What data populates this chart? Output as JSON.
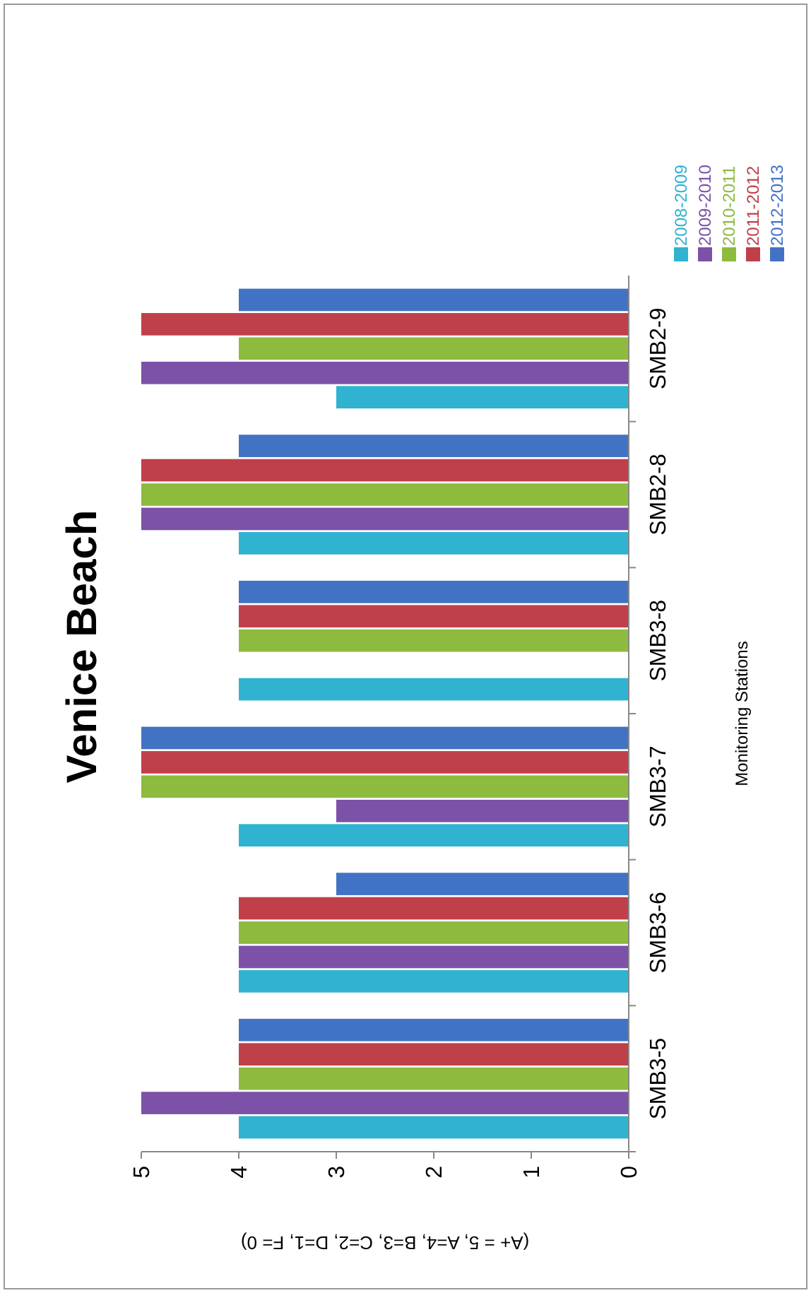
{
  "chart_data": {
    "type": "bar",
    "orientation": "horizontal",
    "title": "Venice Beach",
    "ylabel": "Monitoring Stations",
    "xlabel": "(A+ = 5, A=4, B=3, C=2, D=1, F= 0)",
    "categories": [
      "SMB2-9",
      "SMB2-8",
      "SMB3-8",
      "SMB3-7",
      "SMB3-6",
      "SMB3-5"
    ],
    "series": [
      {
        "name": "2008-2009",
        "color": "#2fb3d0",
        "values": [
          3,
          4,
          4,
          4,
          4,
          4
        ]
      },
      {
        "name": "2009-2010",
        "color": "#7b52a8",
        "values": [
          5,
          5,
          0,
          3,
          4,
          5
        ]
      },
      {
        "name": "2010-2011",
        "color": "#8dbb3e",
        "values": [
          4,
          5,
          4,
          5,
          4,
          4
        ]
      },
      {
        "name": "2011-2012",
        "color": "#c0404a",
        "values": [
          5,
          5,
          4,
          5,
          4,
          4
        ]
      },
      {
        "name": "2012-2013",
        "color": "#4272c4",
        "values": [
          4,
          4,
          4,
          5,
          3,
          4
        ]
      }
    ],
    "xlim": [
      5,
      0
    ],
    "xticks": [
      5,
      4,
      3,
      2,
      1,
      0
    ],
    "legend": "top right",
    "grid": false
  }
}
